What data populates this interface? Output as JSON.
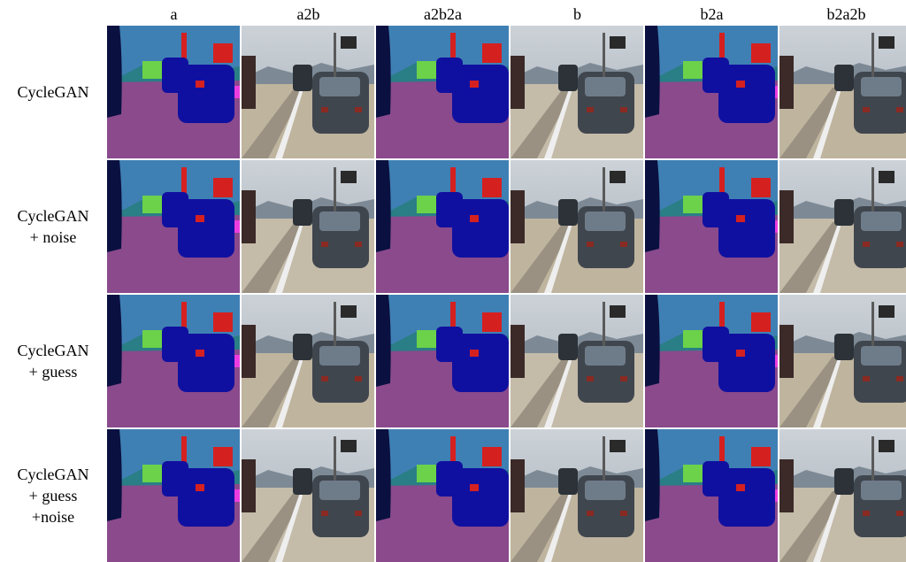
{
  "figure": {
    "column_headers": [
      "a",
      "a2b",
      "a2b2a",
      "b",
      "b2a",
      "b2a2b"
    ],
    "row_labels": [
      [
        "CycleGAN"
      ],
      [
        "CycleGAN",
        "+ noise"
      ],
      [
        "CycleGAN",
        "+ guess"
      ],
      [
        "CycleGAN",
        "+ guess",
        "+noise"
      ]
    ]
  },
  "palette": {
    "seg_sky": "#3f80b4",
    "seg_road": "#8a4a8c",
    "seg_car": "#1010a0",
    "seg_dark": "#0a1040",
    "seg_green": "#6bd24a",
    "seg_red": "#d52020",
    "seg_magenta": "#ec3ce0",
    "seg_teal": "#2a7e86",
    "photo_sky": "#a6aeb6",
    "photo_road": "#9a9182",
    "photo_car": "#40464e",
    "photo_line": "#eeeeee"
  }
}
